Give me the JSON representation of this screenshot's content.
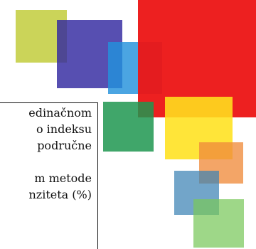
{
  "text_panel": {
    "lines": [
      "edinačnom",
      "o indeksu",
      "područne",
      "",
      "m metode",
      "nziteta (%)"
    ]
  },
  "colors": {
    "olive": "#c2cd3c",
    "indigo": "#3228a0",
    "blue": "#2391dc",
    "red": "#ec1414",
    "green": "#1e9650",
    "yellow": "#ffe11e",
    "orange": "#f08c3c",
    "steel": "#3c82b4",
    "lime": "#78c85a"
  }
}
